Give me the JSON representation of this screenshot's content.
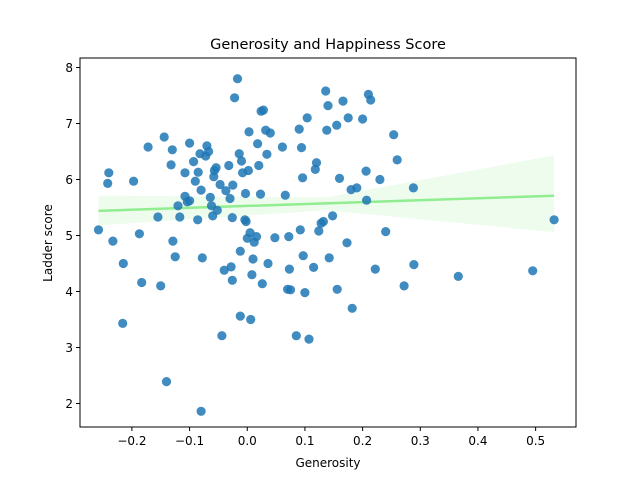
{
  "chart_data": {
    "type": "scatter",
    "title": "Generosity and Happiness Score",
    "xlabel": "Generosity",
    "ylabel": "Ladder score",
    "xlim": [
      -0.29,
      0.57
    ],
    "ylim": [
      1.58,
      8.17
    ],
    "xticks": [
      -0.2,
      -0.1,
      0.0,
      0.1,
      0.2,
      0.3,
      0.4,
      0.5
    ],
    "xtick_labels": [
      "−0.2",
      "−0.1",
      "0.0",
      "0.1",
      "0.2",
      "0.3",
      "0.4",
      "0.5"
    ],
    "yticks": [
      2,
      3,
      4,
      5,
      6,
      7,
      8
    ],
    "ytick_labels": [
      "2",
      "3",
      "4",
      "5",
      "6",
      "7",
      "8"
    ],
    "grid": false,
    "colors": {
      "points": "#1f77b4",
      "regression_line": "#90ee90",
      "confidence_band": "#90ee90"
    },
    "regression": {
      "x_range": [
        -0.258,
        0.532
      ],
      "y_start": 5.44,
      "y_end": 5.71,
      "ci_lower_start": 5.18,
      "ci_upper_start": 5.71,
      "ci_lower_mid": 5.45,
      "ci_upper_mid": 5.68,
      "ci_lower_end": 5.06,
      "ci_upper_end": 6.43
    },
    "points": [
      {
        "x": -0.258,
        "y": 5.1
      },
      {
        "x": -0.24,
        "y": 6.12
      },
      {
        "x": -0.242,
        "y": 5.93
      },
      {
        "x": -0.233,
        "y": 4.9
      },
      {
        "x": -0.215,
        "y": 4.5
      },
      {
        "x": -0.216,
        "y": 3.43
      },
      {
        "x": -0.197,
        "y": 5.97
      },
      {
        "x": -0.187,
        "y": 5.03
      },
      {
        "x": -0.183,
        "y": 4.16
      },
      {
        "x": -0.172,
        "y": 6.58
      },
      {
        "x": -0.155,
        "y": 5.33
      },
      {
        "x": -0.15,
        "y": 4.1
      },
      {
        "x": -0.144,
        "y": 6.76
      },
      {
        "x": -0.14,
        "y": 2.39
      },
      {
        "x": -0.132,
        "y": 6.26
      },
      {
        "x": -0.13,
        "y": 6.53
      },
      {
        "x": -0.129,
        "y": 4.9
      },
      {
        "x": -0.125,
        "y": 4.62
      },
      {
        "x": -0.12,
        "y": 5.53
      },
      {
        "x": -0.117,
        "y": 5.33
      },
      {
        "x": -0.108,
        "y": 5.7
      },
      {
        "x": -0.108,
        "y": 6.12
      },
      {
        "x": -0.104,
        "y": 5.6
      },
      {
        "x": -0.1,
        "y": 6.65
      },
      {
        "x": -0.1,
        "y": 5.62
      },
      {
        "x": -0.093,
        "y": 6.32
      },
      {
        "x": -0.09,
        "y": 5.97
      },
      {
        "x": -0.086,
        "y": 5.28
      },
      {
        "x": -0.085,
        "y": 6.13
      },
      {
        "x": -0.082,
        "y": 6.46
      },
      {
        "x": -0.08,
        "y": 5.81
      },
      {
        "x": -0.078,
        "y": 4.6
      },
      {
        "x": -0.08,
        "y": 1.86
      },
      {
        "x": -0.072,
        "y": 6.42
      },
      {
        "x": -0.07,
        "y": 6.6
      },
      {
        "x": -0.067,
        "y": 6.5
      },
      {
        "x": -0.064,
        "y": 5.68
      },
      {
        "x": -0.062,
        "y": 5.53
      },
      {
        "x": -0.06,
        "y": 5.35
      },
      {
        "x": -0.058,
        "y": 6.05
      },
      {
        "x": -0.057,
        "y": 6.16
      },
      {
        "x": -0.054,
        "y": 6.21
      },
      {
        "x": -0.052,
        "y": 5.45
      },
      {
        "x": -0.047,
        "y": 5.91
      },
      {
        "x": -0.044,
        "y": 3.21
      },
      {
        "x": -0.04,
        "y": 4.38
      },
      {
        "x": -0.037,
        "y": 5.8
      },
      {
        "x": -0.032,
        "y": 6.25
      },
      {
        "x": -0.03,
        "y": 5.66
      },
      {
        "x": -0.028,
        "y": 4.44
      },
      {
        "x": -0.026,
        "y": 4.2
      },
      {
        "x": -0.026,
        "y": 5.32
      },
      {
        "x": -0.025,
        "y": 5.9
      },
      {
        "x": -0.022,
        "y": 7.46
      },
      {
        "x": -0.017,
        "y": 7.8
      },
      {
        "x": -0.014,
        "y": 6.46
      },
      {
        "x": -0.012,
        "y": 3.56
      },
      {
        "x": -0.012,
        "y": 4.72
      },
      {
        "x": -0.01,
        "y": 6.33
      },
      {
        "x": -0.008,
        "y": 6.12
      },
      {
        "x": -0.004,
        "y": 5.28
      },
      {
        "x": -0.003,
        "y": 5.75
      },
      {
        "x": -0.002,
        "y": 5.25
      },
      {
        "x": 0.0,
        "y": 4.95
      },
      {
        "x": 0.002,
        "y": 6.16
      },
      {
        "x": 0.003,
        "y": 6.85
      },
      {
        "x": 0.005,
        "y": 5.05
      },
      {
        "x": 0.006,
        "y": 3.5
      },
      {
        "x": 0.008,
        "y": 4.3
      },
      {
        "x": 0.01,
        "y": 4.58
      },
      {
        "x": 0.012,
        "y": 4.88
      },
      {
        "x": 0.016,
        "y": 4.98
      },
      {
        "x": 0.018,
        "y": 6.64
      },
      {
        "x": 0.02,
        "y": 6.25
      },
      {
        "x": 0.023,
        "y": 5.74
      },
      {
        "x": 0.024,
        "y": 7.22
      },
      {
        "x": 0.026,
        "y": 4.14
      },
      {
        "x": 0.028,
        "y": 7.24
      },
      {
        "x": 0.032,
        "y": 6.88
      },
      {
        "x": 0.034,
        "y": 6.45
      },
      {
        "x": 0.036,
        "y": 4.5
      },
      {
        "x": 0.04,
        "y": 6.83
      },
      {
        "x": 0.048,
        "y": 4.96
      },
      {
        "x": 0.061,
        "y": 6.58
      },
      {
        "x": 0.066,
        "y": 5.72
      },
      {
        "x": 0.07,
        "y": 4.04
      },
      {
        "x": 0.072,
        "y": 4.98
      },
      {
        "x": 0.073,
        "y": 4.4
      },
      {
        "x": 0.075,
        "y": 4.03
      },
      {
        "x": 0.085,
        "y": 3.21
      },
      {
        "x": 0.09,
        "y": 6.9
      },
      {
        "x": 0.092,
        "y": 5.1
      },
      {
        "x": 0.094,
        "y": 6.57
      },
      {
        "x": 0.096,
        "y": 6.03
      },
      {
        "x": 0.097,
        "y": 4.64
      },
      {
        "x": 0.1,
        "y": 3.98
      },
      {
        "x": 0.104,
        "y": 7.1
      },
      {
        "x": 0.107,
        "y": 3.15
      },
      {
        "x": 0.115,
        "y": 4.43
      },
      {
        "x": 0.118,
        "y": 6.18
      },
      {
        "x": 0.12,
        "y": 6.3
      },
      {
        "x": 0.124,
        "y": 5.08
      },
      {
        "x": 0.128,
        "y": 5.22
      },
      {
        "x": 0.132,
        "y": 5.25
      },
      {
        "x": 0.136,
        "y": 7.58
      },
      {
        "x": 0.138,
        "y": 6.88
      },
      {
        "x": 0.14,
        "y": 7.32
      },
      {
        "x": 0.142,
        "y": 4.6
      },
      {
        "x": 0.148,
        "y": 5.35
      },
      {
        "x": 0.155,
        "y": 6.97
      },
      {
        "x": 0.156,
        "y": 4.04
      },
      {
        "x": 0.16,
        "y": 6.02
      },
      {
        "x": 0.166,
        "y": 7.4
      },
      {
        "x": 0.173,
        "y": 4.87
      },
      {
        "x": 0.175,
        "y": 7.1
      },
      {
        "x": 0.18,
        "y": 5.82
      },
      {
        "x": 0.182,
        "y": 3.7
      },
      {
        "x": 0.19,
        "y": 5.85
      },
      {
        "x": 0.2,
        "y": 7.08
      },
      {
        "x": 0.206,
        "y": 6.15
      },
      {
        "x": 0.207,
        "y": 5.63
      },
      {
        "x": 0.21,
        "y": 7.52
      },
      {
        "x": 0.214,
        "y": 7.42
      },
      {
        "x": 0.222,
        "y": 4.4
      },
      {
        "x": 0.23,
        "y": 6.0
      },
      {
        "x": 0.24,
        "y": 5.07
      },
      {
        "x": 0.254,
        "y": 6.8
      },
      {
        "x": 0.26,
        "y": 6.35
      },
      {
        "x": 0.272,
        "y": 4.1
      },
      {
        "x": 0.288,
        "y": 5.85
      },
      {
        "x": 0.289,
        "y": 4.48
      },
      {
        "x": 0.366,
        "y": 4.27
      },
      {
        "x": 0.495,
        "y": 4.37
      },
      {
        "x": 0.532,
        "y": 5.28
      }
    ]
  }
}
